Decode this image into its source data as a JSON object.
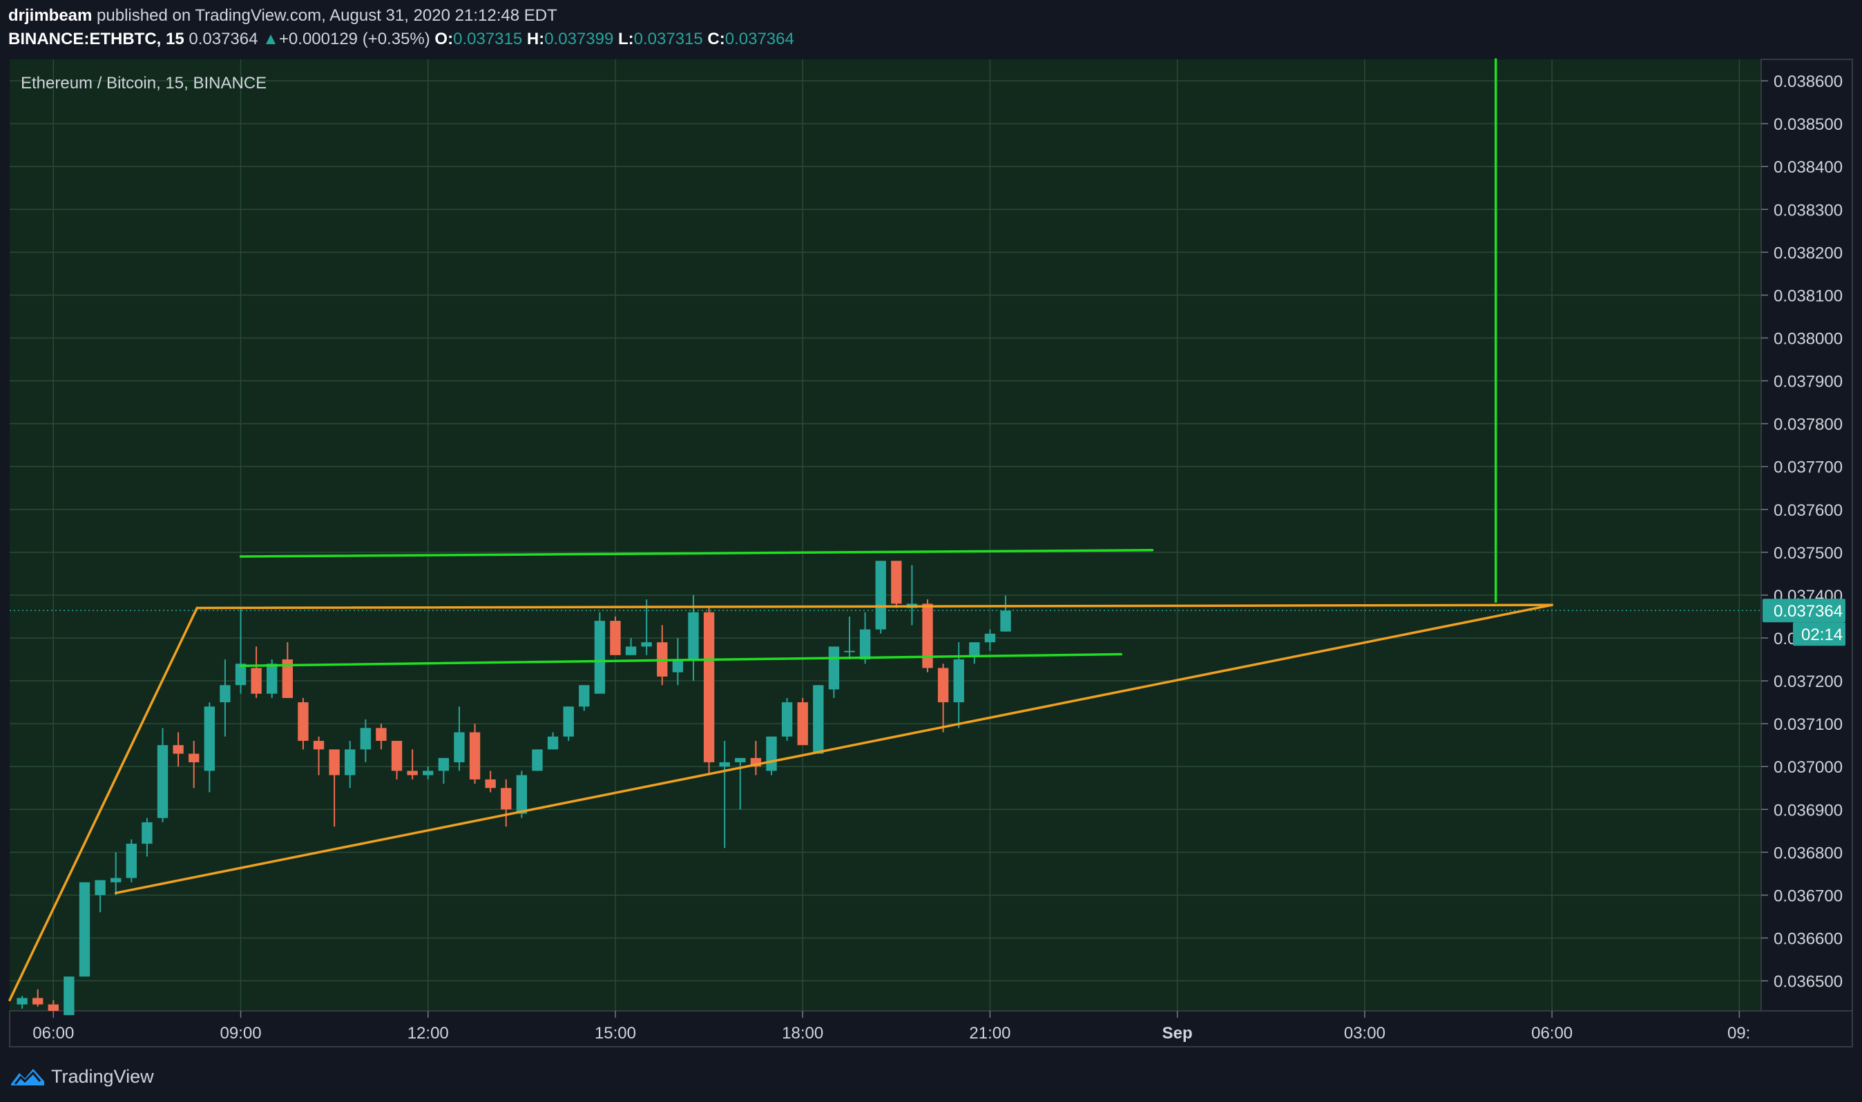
{
  "header": {
    "author": "drjimbeam",
    "published_text": "published on TradingView.com, August 31, 2020 21:12:48 EDT",
    "symbol": "BINANCE:ETHBTC, 15",
    "last": "0.037364",
    "change_arrow": "▲",
    "change": "+0.000129 (+0.35%)",
    "o_label": "O:",
    "o_value": "0.037315",
    "h_label": "H:",
    "h_value": "0.037399",
    "l_label": "L:",
    "l_value": "0.037315",
    "c_label": "C:",
    "c_value": "0.037364"
  },
  "footer": {
    "brand": "TradingView",
    "logo_icon": "tradingview-logo-icon"
  },
  "chart_data": {
    "type": "candlestick",
    "title": "Ethereum / Bitcoin, 15, BINANCE",
    "ylim": [
      0.03643,
      0.03865
    ],
    "y_ticks": [
      0.0365,
      0.0366,
      0.0367,
      0.0368,
      0.0369,
      0.037,
      0.0371,
      0.0372,
      0.0373,
      0.0374,
      0.0375,
      0.0376,
      0.0377,
      0.0378,
      0.0379,
      0.038,
      0.0381,
      0.0382,
      0.0383,
      0.0384,
      0.0385,
      0.0386
    ],
    "y_tick_labels": [
      "0.036500",
      "0.036600",
      "0.036700",
      "0.036800",
      "0.036900",
      "0.037000",
      "0.037100",
      "0.037200",
      "0.037300",
      "0.037400",
      "0.037500",
      "0.037600",
      "0.037700",
      "0.037800",
      "0.037900",
      "0.038000",
      "0.038100",
      "0.038200",
      "0.038300",
      "0.038400",
      "0.038500",
      "0.038600"
    ],
    "x_range_hours": [
      5.3,
      33.35
    ],
    "x_ticks": [
      6,
      9,
      12,
      15,
      18,
      21,
      24,
      27,
      30,
      33
    ],
    "x_tick_labels": [
      "06:00",
      "09:00",
      "12:00",
      "15:00",
      "18:00",
      "21:00",
      "Sep",
      "03:00",
      "06:00",
      "09:"
    ],
    "last_price_label": "0.037364",
    "countdown_label": "02:14",
    "colors": {
      "background": "#112a1d",
      "grid": "#2a4a36",
      "up": "#26a69a",
      "down": "#ef6c50",
      "triangle_line": "#f0a020",
      "channel_line": "#22dd22",
      "price_tag": "#26a69a"
    },
    "candles": [
      [
        5.5,
        0.036445,
        0.036465,
        0.036435,
        0.03646
      ],
      [
        5.75,
        0.03646,
        0.03648,
        0.03644,
        0.036445
      ],
      [
        6.0,
        0.036445,
        0.036455,
        0.03643,
        0.03643
      ],
      [
        6.25,
        0.03642,
        0.03651,
        0.03642,
        0.03651
      ],
      [
        6.5,
        0.03651,
        0.03673,
        0.03651,
        0.03673
      ],
      [
        6.75,
        0.0367,
        0.03673,
        0.03666,
        0.036735
      ],
      [
        7.0,
        0.03673,
        0.0368,
        0.0367,
        0.03674
      ],
      [
        7.25,
        0.03674,
        0.03683,
        0.03673,
        0.03682
      ],
      [
        7.5,
        0.03682,
        0.03688,
        0.03679,
        0.03687
      ],
      [
        7.75,
        0.03688,
        0.03709,
        0.03687,
        0.03705
      ],
      [
        8.0,
        0.03705,
        0.03708,
        0.037,
        0.03703
      ],
      [
        8.25,
        0.03703,
        0.03706,
        0.03695,
        0.03701
      ],
      [
        8.5,
        0.03699,
        0.03715,
        0.03694,
        0.03714
      ],
      [
        8.75,
        0.03715,
        0.03725,
        0.03707,
        0.03719
      ],
      [
        9.0,
        0.03719,
        0.03737,
        0.03717,
        0.03724
      ],
      [
        9.25,
        0.03723,
        0.03728,
        0.03716,
        0.03717
      ],
      [
        9.5,
        0.03717,
        0.03725,
        0.03716,
        0.03724
      ],
      [
        9.75,
        0.03725,
        0.03729,
        0.03716,
        0.03716
      ],
      [
        10.0,
        0.03715,
        0.03716,
        0.03704,
        0.03706
      ],
      [
        10.25,
        0.03706,
        0.03707,
        0.03698,
        0.03704
      ],
      [
        10.5,
        0.03704,
        0.03704,
        0.03686,
        0.03698
      ],
      [
        10.75,
        0.03698,
        0.03706,
        0.03695,
        0.03704
      ],
      [
        11.0,
        0.03704,
        0.03711,
        0.03701,
        0.03709
      ],
      [
        11.25,
        0.03709,
        0.0371,
        0.03704,
        0.03706
      ],
      [
        11.5,
        0.03706,
        0.03706,
        0.03697,
        0.03699
      ],
      [
        11.75,
        0.03699,
        0.03704,
        0.03697,
        0.03698
      ],
      [
        12.0,
        0.03698,
        0.037,
        0.03697,
        0.03699
      ],
      [
        12.25,
        0.03699,
        0.03702,
        0.03696,
        0.03702
      ],
      [
        12.5,
        0.03701,
        0.03714,
        0.03699,
        0.03708
      ],
      [
        12.75,
        0.03708,
        0.0371,
        0.03696,
        0.03697
      ],
      [
        13.0,
        0.03697,
        0.03699,
        0.03694,
        0.03695
      ],
      [
        13.25,
        0.03695,
        0.03697,
        0.03686,
        0.0369
      ],
      [
        13.5,
        0.03689,
        0.03699,
        0.03688,
        0.03698
      ],
      [
        13.75,
        0.03699,
        0.03704,
        0.03699,
        0.03704
      ],
      [
        14.0,
        0.03704,
        0.03708,
        0.03704,
        0.03707
      ],
      [
        14.25,
        0.03707,
        0.03714,
        0.03706,
        0.03714
      ],
      [
        14.5,
        0.03714,
        0.03719,
        0.03713,
        0.03719
      ],
      [
        14.75,
        0.03717,
        0.03736,
        0.03717,
        0.03734
      ],
      [
        15.0,
        0.03734,
        0.03735,
        0.03726,
        0.03726
      ],
      [
        15.25,
        0.03726,
        0.0373,
        0.03727,
        0.03728
      ],
      [
        15.5,
        0.03728,
        0.03739,
        0.03726,
        0.03729
      ],
      [
        15.75,
        0.03729,
        0.03733,
        0.03719,
        0.03721
      ],
      [
        16.0,
        0.03722,
        0.0373,
        0.03719,
        0.03725
      ],
      [
        16.25,
        0.03725,
        0.0374,
        0.0372,
        0.03736
      ],
      [
        16.5,
        0.03736,
        0.03737,
        0.03698,
        0.03701
      ],
      [
        16.75,
        0.037,
        0.03706,
        0.03681,
        0.03701
      ],
      [
        17.0,
        0.03701,
        0.03702,
        0.0369,
        0.03702
      ],
      [
        17.25,
        0.03702,
        0.03706,
        0.03698,
        0.037
      ],
      [
        17.5,
        0.03699,
        0.03707,
        0.03698,
        0.03707
      ],
      [
        17.75,
        0.03707,
        0.03716,
        0.03706,
        0.03715
      ],
      [
        18.0,
        0.03715,
        0.03716,
        0.03705,
        0.03705
      ],
      [
        18.25,
        0.03703,
        0.03719,
        0.03703,
        0.03719
      ],
      [
        18.5,
        0.03718,
        0.03728,
        0.03716,
        0.03728
      ],
      [
        18.75,
        0.03727,
        0.03735,
        0.03725,
        0.03727
      ],
      [
        19.0,
        0.03725,
        0.03736,
        0.03724,
        0.03732
      ],
      [
        19.25,
        0.03732,
        0.03748,
        0.03731,
        0.03748
      ],
      [
        19.5,
        0.03748,
        0.03748,
        0.03737,
        0.03738
      ],
      [
        19.75,
        0.03737,
        0.03747,
        0.03733,
        0.03738
      ],
      [
        20.0,
        0.03738,
        0.03739,
        0.03722,
        0.03723
      ],
      [
        20.25,
        0.03723,
        0.03724,
        0.03708,
        0.03715
      ],
      [
        20.5,
        0.03715,
        0.03729,
        0.03709,
        0.03725
      ],
      [
        20.75,
        0.03726,
        0.03729,
        0.03724,
        0.03729
      ],
      [
        21.0,
        0.03729,
        0.03732,
        0.03727,
        0.03731
      ],
      [
        21.25,
        0.037315,
        0.037399,
        0.037315,
        0.037364
      ]
    ],
    "drawings": [
      {
        "name": "ascending-triangle-left-leg",
        "color": "triangle",
        "points": [
          [
            5.3,
            0.036455
          ],
          [
            8.3,
            0.03737
          ]
        ]
      },
      {
        "name": "ascending-triangle-top",
        "color": "triangle",
        "points": [
          [
            8.3,
            0.03737
          ],
          [
            30.0,
            0.037377
          ]
        ]
      },
      {
        "name": "ascending-triangle-bottom",
        "color": "triangle",
        "points": [
          [
            7.0,
            0.036705
          ],
          [
            30.0,
            0.037377
          ]
        ]
      },
      {
        "name": "channel-upper-line",
        "color": "channel",
        "points": [
          [
            9.0,
            0.03749
          ],
          [
            23.6,
            0.037505
          ]
        ]
      },
      {
        "name": "channel-lower-line",
        "color": "channel",
        "points": [
          [
            9.0,
            0.037235
          ],
          [
            23.1,
            0.037262
          ]
        ]
      },
      {
        "name": "target-projection-line",
        "color": "channel",
        "points": [
          [
            29.1,
            0.03865
          ],
          [
            29.1,
            0.037385
          ]
        ]
      }
    ]
  }
}
